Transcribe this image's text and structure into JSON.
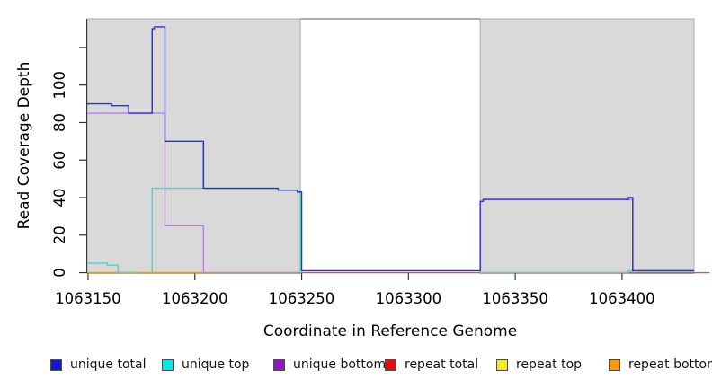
{
  "chart_data": {
    "type": "line",
    "step": "after",
    "title": "",
    "xlabel": "Coordinate in Reference Genome",
    "ylabel": "Read Coverage Depth",
    "xlim": [
      1063149.6,
      1063433.7
    ],
    "ylim": [
      -0.7,
      135.3
    ],
    "grid": false,
    "legend_position": "bottom",
    "axis_color": "#333333",
    "background_regions": [
      {
        "name": "highlight-region-1",
        "x1": 1063149.6,
        "x2": 1063249.4,
        "fill": "#d9d9d9",
        "stroke": "#ababab"
      },
      {
        "name": "highlight-region-2",
        "x1": 1063333.6,
        "x2": 1063433.7,
        "fill": "#d9d9d9",
        "stroke": "#ababab"
      }
    ],
    "gap_top_line": {
      "x1": 1063249.4,
      "x2": 1063333.6,
      "y": 135.3,
      "color": "#8f8f8f"
    },
    "x_ticks": [
      {
        "v": 1063150,
        "label": "1063150"
      },
      {
        "v": 1063200,
        "label": "1063200"
      },
      {
        "v": 1063250,
        "label": "1063250"
      },
      {
        "v": 1063300,
        "label": "1063300"
      },
      {
        "v": 1063350,
        "label": "1063350"
      },
      {
        "v": 1063400,
        "label": "1063400"
      }
    ],
    "y_ticks": [
      {
        "v": 0,
        "label": "0"
      },
      {
        "v": 20,
        "label": "20"
      },
      {
        "v": 40,
        "label": "40"
      },
      {
        "v": 60,
        "label": "60"
      },
      {
        "v": 80,
        "label": "80"
      },
      {
        "v": 100,
        "label": "100"
      },
      {
        "v": 120,
        "label": ""
      }
    ],
    "series": [
      {
        "name": "repeat-total",
        "label": "repeat total",
        "line_color": "#e04a5a",
        "legend_color": "#ee0a0a",
        "segments": [
          [
            [
              1063149.6,
              0
            ],
            [
              1063441,
              0
            ]
          ]
        ]
      },
      {
        "name": "repeat-top",
        "label": "repeat top",
        "line_color": "#eeee00",
        "legend_color": "#f2f20a",
        "segments": [
          [
            [
              1063149.6,
              0
            ],
            [
              1063249.4,
              0
            ]
          ]
        ]
      },
      {
        "name": "repeat-bottom",
        "label": "repeat bottom",
        "line_color": "#ff980e",
        "legend_color": "#ff990a",
        "segments": [
          [
            [
              1063149.6,
              0
            ],
            [
              1063204,
              0
            ]
          ]
        ]
      },
      {
        "name": "unique-bottom",
        "label": "unique bottom",
        "line_color": "#b77fe0",
        "legend_color": "#9a10cc",
        "segments": [
          [
            [
              1063149.6,
              85
            ],
            [
              1063186,
              25
            ],
            [
              1063204,
              0
            ],
            [
              1063249.4,
              0
            ]
          ],
          [
            [
              1063333.6,
              38
            ],
            [
              1063335,
              39
            ],
            [
              1063403,
              39
            ],
            [
              1063405,
              0
            ]
          ]
        ]
      },
      {
        "name": "unique-top",
        "label": "unique top",
        "line_color": "#3edbd0",
        "legend_color": "#06e9e9",
        "segments": [
          [
            [
              1063149.6,
              5
            ],
            [
              1063159,
              4
            ],
            [
              1063164,
              0
            ],
            [
              1063173,
              0
            ]
          ],
          [
            [
              1063180,
              0
            ],
            [
              1063180,
              45
            ],
            [
              1063239,
              44
            ],
            [
              1063248,
              43
            ],
            [
              1063249.4,
              0
            ]
          ],
          [
            [
              1063333.6,
              0
            ],
            [
              1063403,
              1
            ],
            [
              1063433.7,
              1
            ]
          ]
        ]
      },
      {
        "name": "unique-total",
        "label": "unique total",
        "line_color": "#2c2cdb",
        "legend_color": "#1414dd",
        "segments": [
          [
            [
              1063149.6,
              90
            ],
            [
              1063161,
              89
            ],
            [
              1063169,
              85
            ],
            [
              1063180,
              130
            ],
            [
              1063181,
              131
            ],
            [
              1063186,
              70
            ],
            [
              1063204,
              45
            ],
            [
              1063239,
              44
            ],
            [
              1063248,
              43
            ],
            [
              1063250,
              1
            ],
            [
              1063333.6,
              38
            ],
            [
              1063335,
              39
            ],
            [
              1063403,
              40
            ],
            [
              1063405,
              1
            ],
            [
              1063433.7,
              1
            ]
          ]
        ]
      }
    ],
    "legend_order": [
      "unique-total",
      "unique-top",
      "unique-bottom",
      "repeat-total",
      "repeat-top",
      "repeat-bottom"
    ]
  }
}
